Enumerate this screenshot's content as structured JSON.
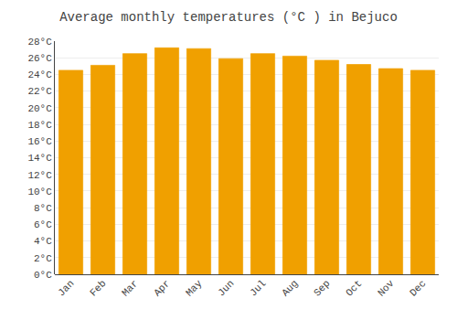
{
  "chart_data": {
    "type": "bar",
    "title": "Average monthly temperatures (°C ) in Bejuco",
    "categories": [
      "Jan",
      "Feb",
      "Mar",
      "Apr",
      "May",
      "Jun",
      "Jul",
      "Aug",
      "Sep",
      "Oct",
      "Nov",
      "Dec"
    ],
    "values": [
      24.5,
      25.1,
      26.5,
      27.2,
      27.1,
      25.9,
      26.5,
      26.2,
      25.7,
      25.2,
      24.7,
      24.5
    ],
    "color": "#F0A000",
    "ylim": [
      0,
      28
    ],
    "yticks": [
      {
        "value": 0,
        "label": "0°C"
      },
      {
        "value": 2,
        "label": "2°C"
      },
      {
        "value": 4,
        "label": "4°C"
      },
      {
        "value": 6,
        "label": "6°C"
      },
      {
        "value": 8,
        "label": "8°C"
      },
      {
        "value": 10,
        "label": "10°C"
      },
      {
        "value": 12,
        "label": "12°C"
      },
      {
        "value": 14,
        "label": "14°C"
      },
      {
        "value": 16,
        "label": "16°C"
      },
      {
        "value": 18,
        "label": "18°C"
      },
      {
        "value": 20,
        "label": "20°C"
      },
      {
        "value": 22,
        "label": "22°C"
      },
      {
        "value": 24,
        "label": "24°C"
      },
      {
        "value": 26,
        "label": "26°C"
      },
      {
        "value": 28,
        "label": "28°C"
      }
    ],
    "grid": true
  }
}
